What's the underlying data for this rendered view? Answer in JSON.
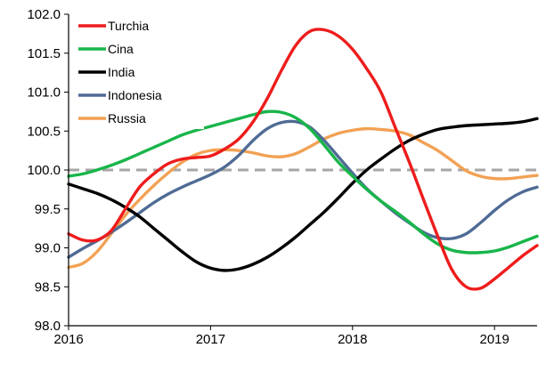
{
  "chart_data": {
    "type": "line",
    "title": "",
    "xlabel": "",
    "ylabel": "",
    "ylim": [
      98.0,
      102.0
    ],
    "y_ticks": [
      "98.0",
      "98.5",
      "99.0",
      "99.5",
      "100.0",
      "100.5",
      "101.0",
      "101.5",
      "102.0"
    ],
    "x_range": [
      2016.0,
      2019.3
    ],
    "x_ticks": [
      "2016",
      "2017",
      "2018",
      "2019"
    ],
    "x_tick_values": [
      2016,
      2017,
      2018,
      2019
    ],
    "grid": false,
    "legend_position": "top-left",
    "reference_line": {
      "y": 100.0,
      "style": "dashed",
      "color": "#a6a6a6"
    },
    "series": [
      {
        "name": "Turchia",
        "color": "#ee1c1c",
        "x": [
          2016.0,
          2016.1,
          2016.2,
          2016.3,
          2016.4,
          2016.5,
          2016.6,
          2016.7,
          2016.8,
          2016.9,
          2017.0,
          2017.1,
          2017.2,
          2017.3,
          2017.4,
          2017.5,
          2017.6,
          2017.7,
          2017.8,
          2017.9,
          2018.0,
          2018.1,
          2018.2,
          2018.3,
          2018.4,
          2018.5,
          2018.6,
          2018.7,
          2018.8,
          2018.9,
          2019.0,
          2019.1,
          2019.2,
          2019.3
        ],
        "values": [
          99.18,
          99.1,
          99.1,
          99.22,
          99.5,
          99.78,
          99.95,
          100.08,
          100.14,
          100.16,
          100.18,
          100.27,
          100.4,
          100.62,
          100.92,
          101.28,
          101.6,
          101.78,
          101.8,
          101.72,
          101.55,
          101.3,
          101.0,
          100.55,
          100.1,
          99.62,
          99.15,
          98.72,
          98.5,
          98.48,
          98.6,
          98.75,
          98.9,
          99.03
        ]
      },
      {
        "name": "Cina",
        "color": "#18b54a",
        "x": [
          2016.0,
          2016.1,
          2016.2,
          2016.3,
          2016.4,
          2016.5,
          2016.6,
          2016.7,
          2016.8,
          2016.9,
          2017.0,
          2017.1,
          2017.2,
          2017.3,
          2017.4,
          2017.5,
          2017.6,
          2017.7,
          2017.8,
          2017.9,
          2018.0,
          2018.1,
          2018.2,
          2018.3,
          2018.4,
          2018.5,
          2018.6,
          2018.7,
          2018.8,
          2018.9,
          2019.0,
          2019.1,
          2019.2,
          2019.3
        ],
        "values": [
          99.92,
          99.95,
          100.0,
          100.06,
          100.13,
          100.21,
          100.29,
          100.37,
          100.45,
          100.51,
          100.56,
          100.61,
          100.66,
          100.71,
          100.75,
          100.74,
          100.67,
          100.53,
          100.32,
          100.1,
          99.92,
          99.75,
          99.6,
          99.47,
          99.33,
          99.18,
          99.05,
          98.97,
          98.94,
          98.94,
          98.96,
          99.01,
          99.08,
          99.15
        ]
      },
      {
        "name": "India",
        "color": "#000000",
        "x": [
          2016.0,
          2016.1,
          2016.2,
          2016.3,
          2016.4,
          2016.5,
          2016.6,
          2016.7,
          2016.8,
          2016.9,
          2017.0,
          2017.1,
          2017.2,
          2017.3,
          2017.4,
          2017.5,
          2017.6,
          2017.7,
          2017.8,
          2017.9,
          2018.0,
          2018.1,
          2018.2,
          2018.3,
          2018.4,
          2018.5,
          2018.6,
          2018.7,
          2018.8,
          2018.9,
          2019.0,
          2019.1,
          2019.2,
          2019.3
        ],
        "values": [
          99.82,
          99.76,
          99.7,
          99.62,
          99.52,
          99.4,
          99.25,
          99.1,
          98.95,
          98.82,
          98.74,
          98.71,
          98.73,
          98.79,
          98.88,
          99.0,
          99.14,
          99.3,
          99.46,
          99.64,
          99.83,
          100.0,
          100.14,
          100.27,
          100.38,
          100.46,
          100.52,
          100.55,
          100.57,
          100.58,
          100.59,
          100.6,
          100.62,
          100.66
        ]
      },
      {
        "name": "Indonesia",
        "color": "#4f6b95",
        "x": [
          2016.0,
          2016.1,
          2016.2,
          2016.3,
          2016.4,
          2016.5,
          2016.6,
          2016.7,
          2016.8,
          2016.9,
          2017.0,
          2017.1,
          2017.2,
          2017.3,
          2017.4,
          2017.5,
          2017.6,
          2017.7,
          2017.8,
          2017.9,
          2018.0,
          2018.1,
          2018.2,
          2018.3,
          2018.4,
          2018.5,
          2018.6,
          2018.7,
          2018.8,
          2018.9,
          2019.0,
          2019.1,
          2019.2,
          2019.3
        ],
        "values": [
          98.88,
          98.99,
          99.09,
          99.2,
          99.32,
          99.45,
          99.58,
          99.69,
          99.78,
          99.86,
          99.94,
          100.04,
          100.19,
          100.38,
          100.53,
          100.61,
          100.62,
          100.55,
          100.38,
          100.17,
          99.96,
          99.76,
          99.6,
          99.45,
          99.32,
          99.2,
          99.13,
          99.12,
          99.18,
          99.32,
          99.48,
          99.62,
          99.72,
          99.78
        ]
      },
      {
        "name": "Russia",
        "color": "#f2a154",
        "x": [
          2016.0,
          2016.1,
          2016.2,
          2016.3,
          2016.4,
          2016.5,
          2016.6,
          2016.7,
          2016.8,
          2016.9,
          2017.0,
          2017.1,
          2017.2,
          2017.3,
          2017.4,
          2017.5,
          2017.6,
          2017.7,
          2017.8,
          2017.9,
          2018.0,
          2018.1,
          2018.2,
          2018.3,
          2018.4,
          2018.5,
          2018.6,
          2018.7,
          2018.8,
          2018.9,
          2019.0,
          2019.1,
          2019.2,
          2019.3
        ],
        "values": [
          98.75,
          98.8,
          98.95,
          99.18,
          99.42,
          99.62,
          99.8,
          99.96,
          100.1,
          100.2,
          100.25,
          100.26,
          100.25,
          100.22,
          100.18,
          100.17,
          100.21,
          100.3,
          100.4,
          100.47,
          100.51,
          100.53,
          100.52,
          100.5,
          100.45,
          100.35,
          100.25,
          100.12,
          99.99,
          99.92,
          99.89,
          99.89,
          99.91,
          99.93
        ]
      }
    ]
  }
}
